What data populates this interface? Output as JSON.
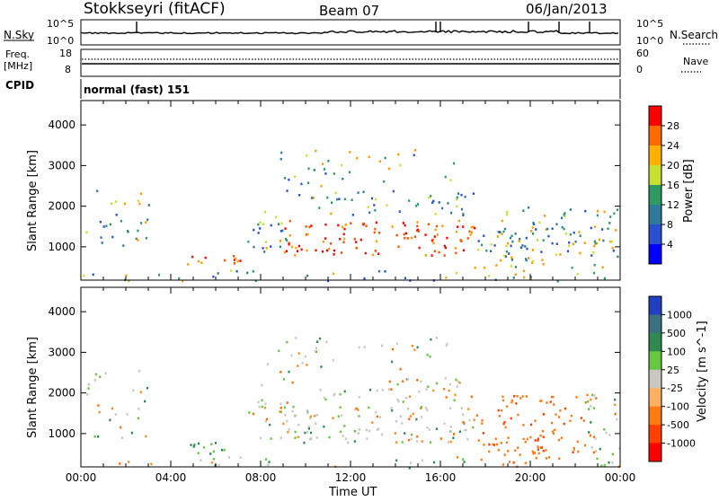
{
  "header": {
    "station": "Stokkseyri (fitACF)",
    "beam": "Beam 07",
    "date": "06/Jan/2013"
  },
  "top_panels": {
    "nsky_label": "N.Sky",
    "nsearch_label": "N.Search",
    "nsky_ticks": [
      "10^5",
      "10^0"
    ],
    "nsearch_ticks": [
      "10^5",
      "10^0"
    ],
    "freq_label_1": "Freq.",
    "freq_label_2": "[MHz]",
    "freq_ticks": [
      "18",
      "8"
    ],
    "nave_label": "Nave",
    "nave_ticks": [
      "60",
      "0"
    ],
    "cpid_label": "CPID",
    "cpid_value": "normal (fast) 151"
  },
  "chart_data": [
    {
      "type": "heatmap",
      "name": "power",
      "ylabel": "Slant Range [km]",
      "xlabel": "Time UT",
      "x_ticks": [
        "00:00",
        "04:00",
        "08:00",
        "12:00",
        "16:00",
        "20:00",
        "00:00"
      ],
      "y_ticks": [
        "1000",
        "2000",
        "3000",
        "4000"
      ],
      "ylim": [
        180,
        4600
      ],
      "colorbar_label": "Power [dB]",
      "colorbar_ticks": [
        "28",
        "24",
        "20",
        "16",
        "12",
        "8",
        "4"
      ],
      "colorbar_colors": [
        "#ff0000",
        "#ff6a00",
        "#ffb000",
        "#c8e030",
        "#2e9c62",
        "#2e7a9a",
        "#2850d0",
        "#0000ff"
      ]
    },
    {
      "type": "heatmap",
      "name": "velocity",
      "ylabel": "Slant Range [km]",
      "xlabel": "Time UT",
      "x_ticks": [
        "00:00",
        "04:00",
        "08:00",
        "12:00",
        "16:00",
        "20:00",
        "00:00"
      ],
      "y_ticks": [
        "1000",
        "2000",
        "3000",
        "4000"
      ],
      "ylim": [
        180,
        4600
      ],
      "colorbar_label": "Velocity [m s^-1]",
      "colorbar_ticks": [
        "1000",
        "500",
        "100",
        "25",
        "-25",
        "-100",
        "-500",
        "-1000"
      ],
      "colorbar_colors": [
        "#2040c0",
        "#3a7080",
        "#2e8a50",
        "#66c840",
        "#c8c8c0",
        "#ffb060",
        "#ff7a10",
        "#ff4000",
        "#ff0000"
      ]
    }
  ],
  "axis_title": "Time UT"
}
